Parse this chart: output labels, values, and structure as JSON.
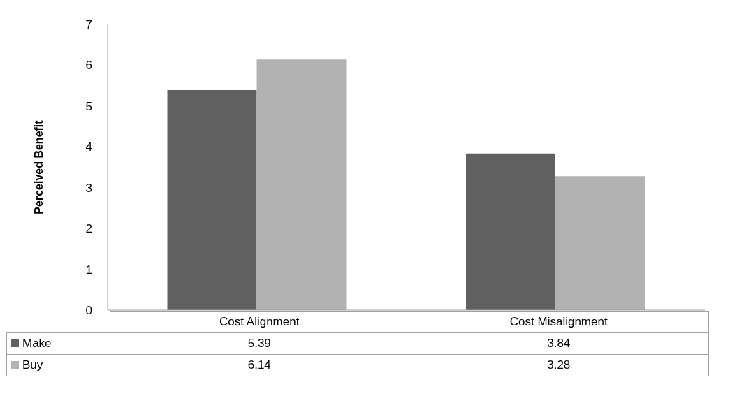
{
  "chart_data": {
    "type": "bar",
    "ylabel": "Perceived Benefit",
    "categories": [
      "Cost Alignment",
      "Cost Misalignment"
    ],
    "series": [
      {
        "name": "Make",
        "color": "#606060",
        "values": [
          5.39,
          3.84
        ]
      },
      {
        "name": "Buy",
        "color": "#b2b2b2",
        "values": [
          6.14,
          3.28
        ]
      }
    ],
    "ylim": [
      0,
      7
    ],
    "yticks": [
      0,
      1,
      2,
      3,
      4,
      5,
      6,
      7
    ],
    "legend": "bottom",
    "data_labels": true
  }
}
